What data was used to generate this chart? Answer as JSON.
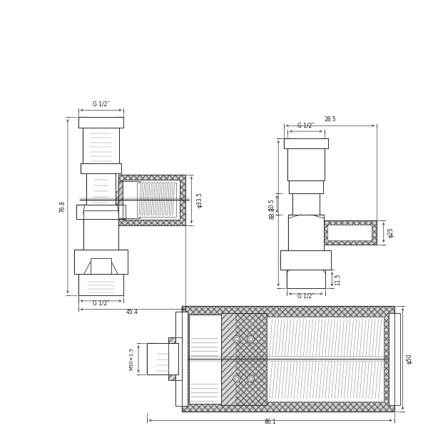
{
  "bg_color": "#ffffff",
  "lc": "#2a2a2a",
  "hc_diag": "#888888",
  "hc_cross": "#888888",
  "fc_metal": "#e8e8e8",
  "fc_white": "#ffffff",
  "dim_color": "#1a1a1a",
  "fig_size": [
    6.0,
    6.0
  ],
  "dpi": 100,
  "ann": {
    "g12_1": "G 1/2″",
    "g12_2": "G 1/2″",
    "g12_3": "G 1/2″",
    "g12_4": "G 1/2″",
    "d_768": "76.8",
    "d_454": "45.4",
    "d_285": "28.5",
    "d_105": "10.5",
    "d_888": "88.8",
    "d_115": "11.5",
    "d_335": "φ33.5",
    "d_25": "φ25",
    "d_m30": "M30×1.5",
    "d_861": "86.1",
    "d_50": "φ50"
  }
}
